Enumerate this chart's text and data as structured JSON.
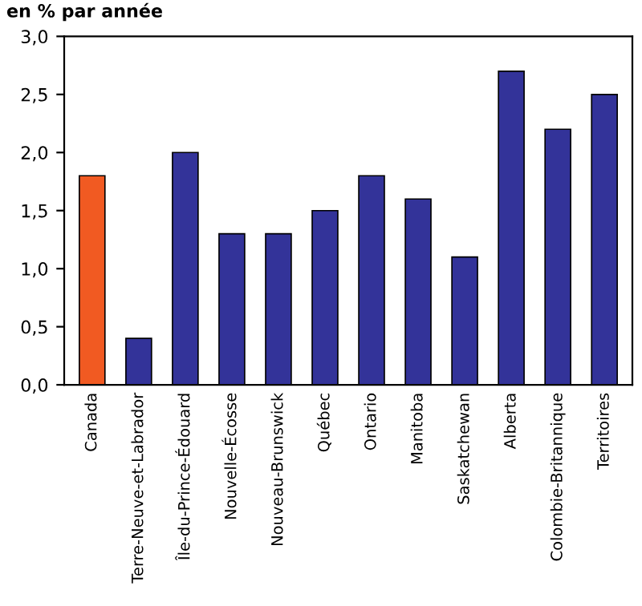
{
  "chart_data": {
    "type": "bar",
    "ylabel": "en % par année",
    "categories": [
      "Canada",
      "Terre-Neuve-et-Labrador",
      "Île-du-Prince-Édouard",
      "Nouvelle-Écosse",
      "Nouveau-Brunswick",
      "Québec",
      "Ontario",
      "Manitoba",
      "Saskatchewan",
      "Alberta",
      "Colombie-Britannique",
      "Territoires"
    ],
    "values": [
      1.8,
      0.4,
      2.0,
      1.3,
      1.3,
      1.5,
      1.8,
      1.6,
      1.1,
      2.7,
      2.2,
      2.5
    ],
    "colors": [
      "#f15a22",
      "#333399",
      "#333399",
      "#333399",
      "#333399",
      "#333399",
      "#333399",
      "#333399",
      "#333399",
      "#333399",
      "#333399",
      "#333399"
    ],
    "ylim": [
      0,
      3
    ],
    "yticks": [
      {
        "value": 0,
        "label": "0,0"
      },
      {
        "value": 0.5,
        "label": "0,5"
      },
      {
        "value": 1,
        "label": "1,0"
      },
      {
        "value": 1.5,
        "label": "1,5"
      },
      {
        "value": 2,
        "label": "2,0"
      },
      {
        "value": 2.5,
        "label": "2,5"
      },
      {
        "value": 3,
        "label": "3,0"
      }
    ],
    "grid": false
  }
}
